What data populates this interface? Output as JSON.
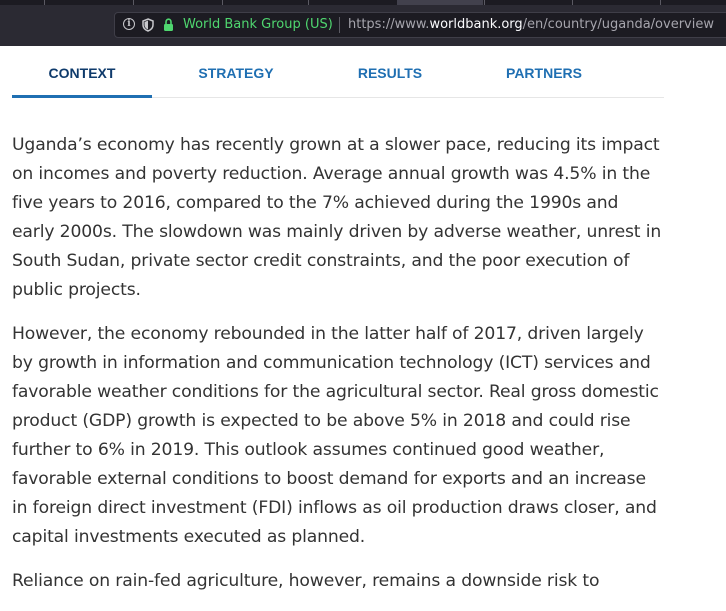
{
  "browser": {
    "org_label": "World Bank Group (US)",
    "url_prefix": "https://www.",
    "url_domain": "worldbank.org",
    "url_path": "/en/country/uganda/overview"
  },
  "tabs": [
    {
      "label": "CONTEXT",
      "active": true
    },
    {
      "label": "STRATEGY",
      "active": false
    },
    {
      "label": "RESULTS",
      "active": false
    },
    {
      "label": "PARTNERS",
      "active": false
    }
  ],
  "article": {
    "paragraphs": [
      "Uganda’s economy has recently grown at a slower pace,  reducing its impact on incomes and poverty reduction. Average annual growth was 4.5% in the five years to 2016, compared to the 7% achieved during the 1990s and early 2000s. The slowdown was mainly driven by adverse weather, unrest in South Sudan, private sector credit constraints, and the poor execution of public projects.",
      "However, the economy rebounded in the latter half of 2017, driven largely by growth in information and communication technology (ICT) services and favorable weather conditions for the agricultural sector. Real gross domestic product (GDP) growth is expected to be above 5% in 2018 and could rise further to 6% in 2019. This outlook assumes continued good weather, favorable external conditions to boost demand for exports and an increase in foreign direct investment (FDI) inflows as oil production draws closer, and capital investments executed as planned.",
      "Reliance on rain-fed agriculture, however, remains a downside risk to"
    ]
  },
  "colors": {
    "tab_link": "#1f6fb2",
    "tab_active": "#0e3a6b",
    "secure_green": "#4fd66f",
    "chrome_bg": "#2b2a33"
  }
}
